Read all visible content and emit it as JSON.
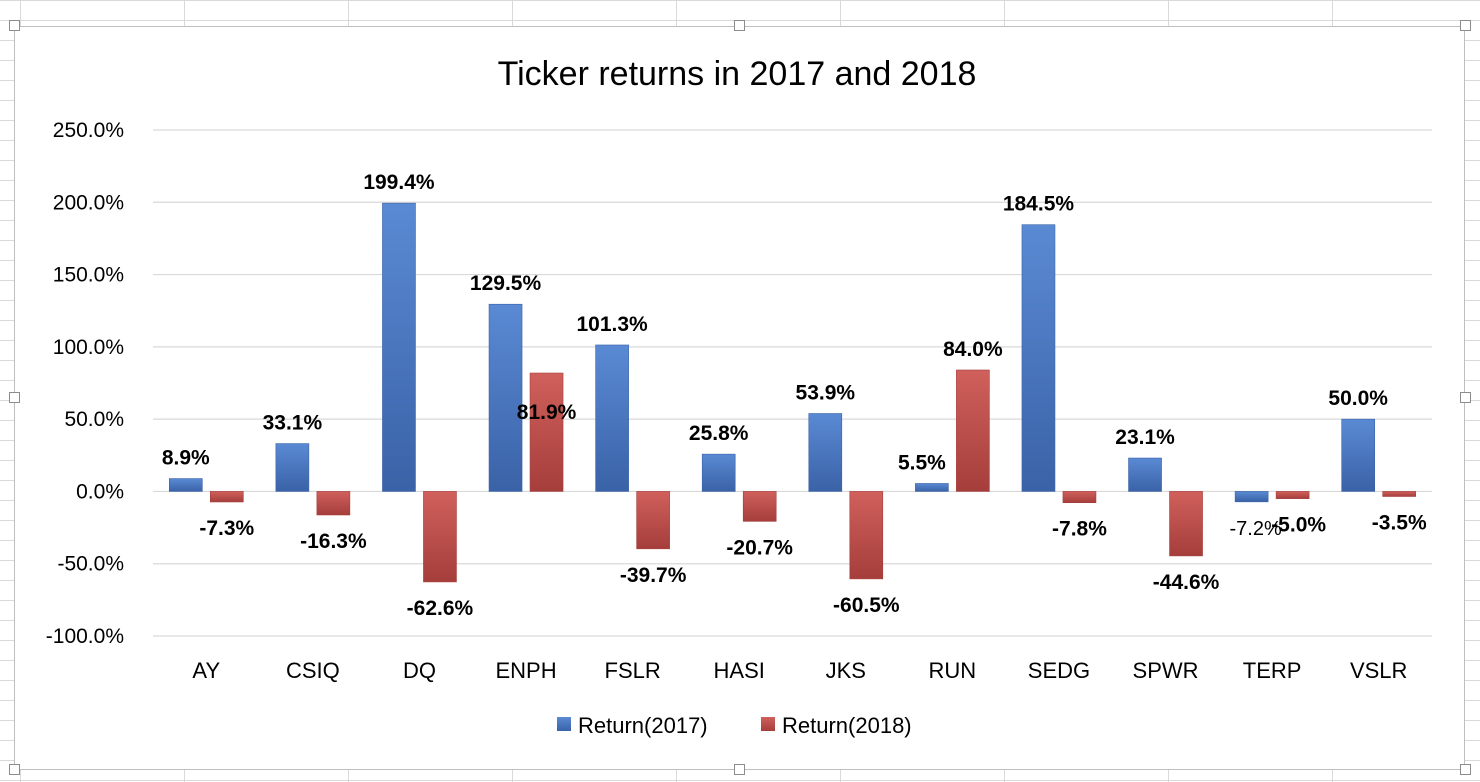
{
  "chart_data": {
    "type": "bar",
    "title": "Ticker returns in 2017 and 2018",
    "xlabel": "",
    "ylabel": "",
    "ylim": [
      -100,
      250
    ],
    "yticks": [
      "250.0%",
      "200.0%",
      "150.0%",
      "100.0%",
      "50.0%",
      "0.0%",
      "-50.0%",
      "-100.0%"
    ],
    "ytick_values": [
      250,
      200,
      150,
      100,
      50,
      0,
      -50,
      -100
    ],
    "grid": true,
    "legend_position": "bottom",
    "categories": [
      "AY",
      "CSIQ",
      "DQ",
      "ENPH",
      "FSLR",
      "HASI",
      "JKS",
      "RUN",
      "SEDG",
      "SPWR",
      "TERP",
      "VSLR"
    ],
    "series": [
      {
        "name": "Return(2017)",
        "color": "#4472c4",
        "values": [
          8.9,
          33.1,
          199.4,
          129.5,
          101.3,
          25.8,
          53.9,
          5.5,
          184.5,
          23.1,
          -7.2,
          50.0
        ],
        "labels": [
          "8.9%",
          "33.1%",
          "199.4%",
          "129.5%",
          "101.3%",
          "25.8%",
          "53.9%",
          "5.5%",
          "184.5%",
          "23.1%",
          "-7.2%",
          "50.0%"
        ]
      },
      {
        "name": "Return(2018)",
        "color": "#c0504d",
        "values": [
          -7.3,
          -16.3,
          -62.6,
          81.9,
          -39.7,
          -20.7,
          -60.5,
          84.0,
          -7.8,
          -44.6,
          -5.0,
          -3.5
        ],
        "labels": [
          "-7.3%",
          "-16.3%",
          "-62.6%",
          "81.9%",
          "-39.7%",
          "-20.7%",
          "-60.5%",
          "84.0%",
          "-7.8%",
          "-44.6%",
          "-5.0%",
          "-3.5%"
        ]
      }
    ]
  }
}
